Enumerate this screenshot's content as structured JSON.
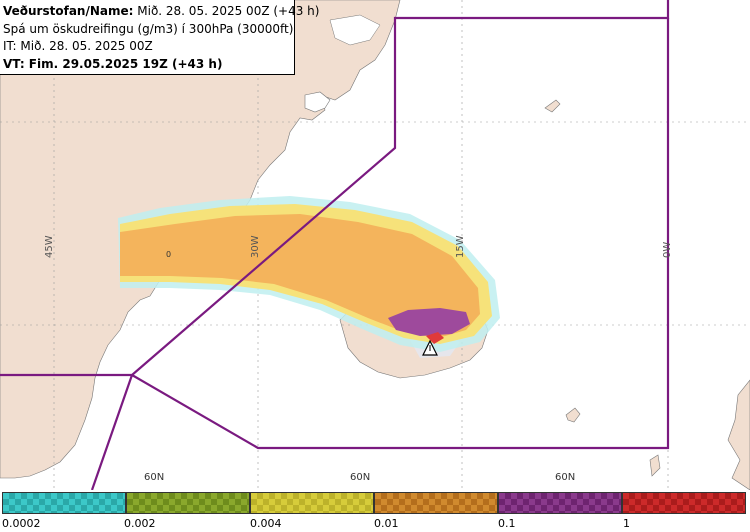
{
  "info": {
    "line1_bold": "Veðurstofan/Name:",
    "line1_rest": " Mið. 28. 05. 2025 00Z (+43 h)",
    "line2": "Spá um öskudreifingu (g/m3) í 300hPa (30000ft)",
    "line3": "IT: Mið. 28. 05. 2025 00Z",
    "line4": "VT: Fim. 29.05.2025 19Z (+43 h)"
  },
  "grid": {
    "lon_labels": [
      "45W",
      "30W",
      "15W",
      "0W"
    ],
    "lat_labels": [
      "60N",
      "60N",
      "60N"
    ],
    "plume_marker": "0"
  },
  "legend": {
    "swatches": [
      {
        "color": "#3cc8c8",
        "alt": "#2aa8a8"
      },
      {
        "color": "#8aa82c",
        "alt": "#6e8c1c"
      },
      {
        "color": "#d6cc3a",
        "alt": "#bcb22a"
      },
      {
        "color": "#d08a2e",
        "alt": "#b46e1c"
      },
      {
        "color": "#8a3a8c",
        "alt": "#6e2470"
      },
      {
        "color": "#cc2a2a",
        "alt": "#aa1c1c"
      }
    ],
    "ticks": [
      "0.0002",
      "0.002",
      "0.004",
      "0.01",
      "0.1",
      "1"
    ]
  },
  "colors": {
    "land": "#f1ded0",
    "boundary": "#7a1a80",
    "plume_light": "#f6d86a",
    "plume_orange": "#f4b45c",
    "plume_dark": "#9e4a9c"
  }
}
